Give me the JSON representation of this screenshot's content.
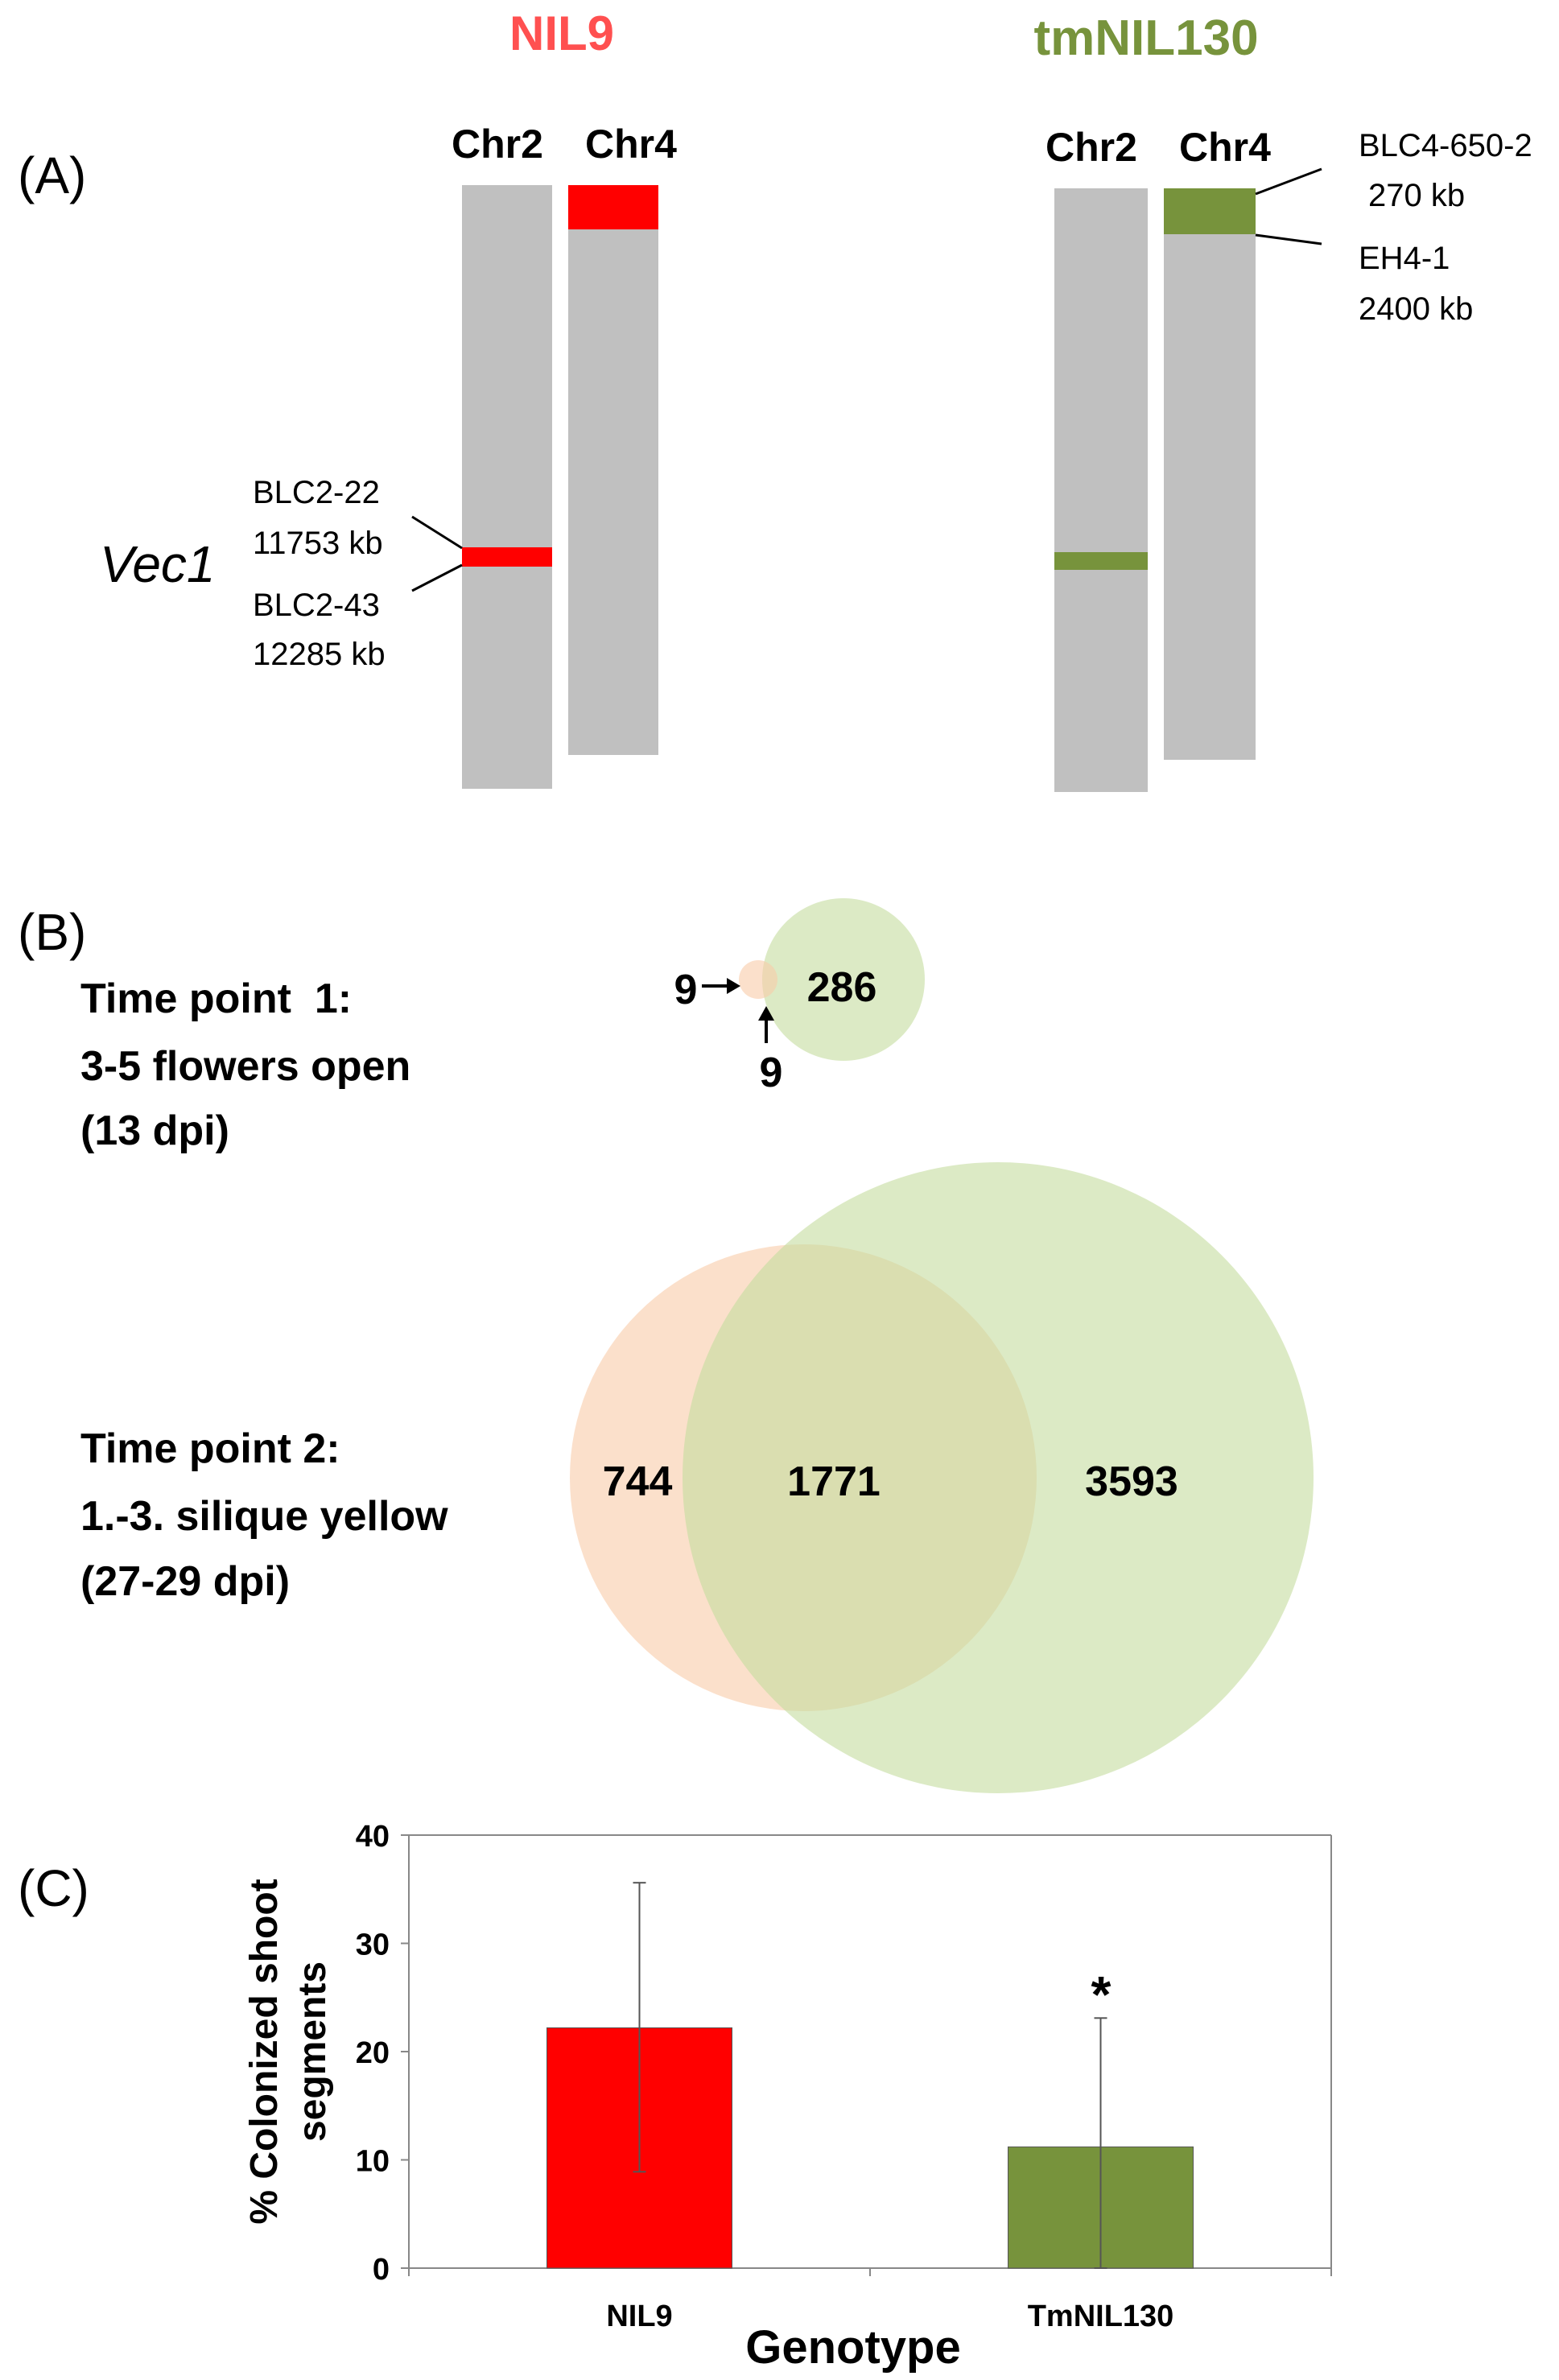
{
  "panel_a": {
    "label": "(A)",
    "colors": {
      "chromosome": "#c0c0c0",
      "nil9": "#ff0000",
      "tmnil130": "#77933c",
      "nil9_title": "#ff5050"
    },
    "lines": [
      {
        "title": "NIL9",
        "chr2_label": "Chr2",
        "chr4_label": "Chr4"
      },
      {
        "title": "tmNIL130",
        "chr2_label": "Chr2",
        "chr4_label": "Chr4"
      }
    ],
    "locus_label": "Vec1",
    "markers": {
      "chr2_upper_name": "BLC2-22",
      "chr2_upper_pos": "11753 kb",
      "chr2_lower_name": "BLC2-43",
      "chr2_lower_pos": "12285 kb",
      "chr4_upper_name": "BLC4-650-2",
      "chr4_upper_pos": "270 kb",
      "chr4_lower_name": "EH4-1",
      "chr4_lower_pos": "2400 kb"
    }
  },
  "panel_b": {
    "label": "(B)",
    "colors": {
      "nil9": "#f8cba8",
      "tmnil130": "#c5dc9e"
    },
    "time_points": [
      {
        "line1": "Time point  1:",
        "line2": "3-5 flowers open",
        "line3": "(13 dpi)",
        "nil9_only": "9",
        "shared": "9",
        "tmnil130_only": "286"
      },
      {
        "line1": "Time point  2:",
        "line2": "1.-3. silique  yellow",
        "line3": "(27-29 dpi)",
        "nil9_only": "744",
        "shared": "1771",
        "tmnil130_only": "3593"
      }
    ]
  },
  "panel_c": {
    "label": "(C)",
    "significance": "*",
    "chart_data": {
      "type": "bar",
      "categories": [
        "NIL9",
        "TmNIL130"
      ],
      "values": [
        22.2,
        11.2
      ],
      "error_up": [
        35.6,
        23.1
      ],
      "error_low": [
        8.9,
        0
      ],
      "colors": [
        "#ff0000",
        "#77933c"
      ],
      "xlabel": "Genotype",
      "ylabel_line1": "% Colonized shoot",
      "ylabel_line2": "segments",
      "ylim": [
        0,
        40
      ],
      "yticks": [
        "0",
        "10",
        "20",
        "30",
        "40"
      ],
      "grid": false
    }
  }
}
